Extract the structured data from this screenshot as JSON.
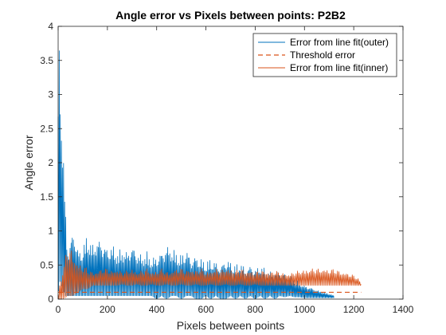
{
  "chart_data": {
    "type": "line",
    "title": "Angle error vs Pixels between points: P2B2",
    "xlabel": "Pixels between points",
    "ylabel": "Angle error",
    "xlim": [
      0,
      1400
    ],
    "ylim": [
      0,
      4
    ],
    "xticks": [
      0,
      200,
      400,
      600,
      800,
      1000,
      1200,
      1400
    ],
    "yticks": [
      0,
      0.5,
      1,
      1.5,
      2,
      2.5,
      3,
      3.5,
      4
    ],
    "xtick_labels": [
      "0",
      "200",
      "400",
      "600",
      "800",
      "1000",
      "1200",
      "1400"
    ],
    "ytick_labels": [
      "0",
      "0.5",
      "1",
      "1.5",
      "2",
      "2.5",
      "3",
      "3.5",
      "4"
    ],
    "grid": false,
    "legend_position": "top-right",
    "series": [
      {
        "name": "Error from line fit(outer)",
        "color": "#0072BD",
        "style": "solid",
        "x": [
          0,
          8,
          15,
          20,
          25,
          28,
          32,
          36,
          40,
          45,
          50,
          60,
          70,
          80,
          90,
          100,
          120,
          140,
          160,
          180,
          200,
          220,
          240,
          260,
          280,
          300,
          320,
          340,
          360,
          380,
          400,
          420,
          440,
          460,
          480,
          500,
          520,
          540,
          560,
          580,
          600,
          620,
          640,
          660,
          680,
          700,
          720,
          740,
          760,
          780,
          800,
          820,
          840,
          860,
          880,
          900,
          920,
          940,
          960,
          980,
          1000,
          1020,
          1040,
          1060,
          1080,
          1100,
          1120
        ],
        "peak": [
          3.8,
          3.75,
          2.9,
          2.3,
          1.9,
          1.6,
          1.1,
          0.85,
          0.8,
          0.75,
          0.9,
          1.0,
          0.95,
          0.75,
          0.7,
          0.8,
          0.95,
          0.8,
          0.9,
          0.85,
          0.75,
          0.8,
          0.7,
          0.75,
          0.7,
          0.8,
          0.7,
          0.65,
          0.7,
          0.6,
          0.65,
          0.7,
          0.8,
          0.75,
          0.7,
          0.65,
          0.75,
          0.6,
          0.65,
          0.6,
          0.55,
          0.6,
          0.55,
          0.5,
          0.6,
          0.55,
          0.5,
          0.55,
          0.45,
          0.5,
          0.45,
          0.5,
          0.45,
          0.4,
          0.42,
          0.4,
          0.38,
          0.35,
          0.3,
          0.25,
          0.2,
          0.18,
          0.15,
          0.12,
          0.1,
          0.08,
          0.05
        ],
        "trough": [
          0.05,
          0.3,
          0.2,
          0.1,
          0.1,
          0.05,
          0.05,
          0.05,
          0.05,
          0.05,
          0.05,
          0.05,
          0.05,
          0.05,
          0.05,
          0.05,
          0.05,
          0.05,
          0.05,
          0.05,
          0.05,
          0.05,
          0.05,
          0.05,
          0.05,
          0.05,
          0.05,
          0.05,
          0.05,
          0.05,
          0.0,
          0.05,
          0.0,
          0.05,
          0.05,
          0.0,
          0.05,
          0.05,
          0.0,
          0.0,
          0.05,
          0.0,
          0.05,
          0.0,
          0.0,
          0.05,
          0.0,
          0.05,
          0.0,
          0.05,
          0.0,
          0.05,
          0.0,
          0.05,
          0.0,
          0.05,
          0.03,
          0.05,
          0.03,
          0.03,
          0.02,
          0.02,
          0.02,
          0.02,
          0.02,
          0.02,
          0.02
        ]
      },
      {
        "name": "Threshold error",
        "color": "#D95319",
        "style": "dashed",
        "x": [
          0,
          1230
        ],
        "values": [
          0.1,
          0.1
        ]
      },
      {
        "name": "Error from line fit(inner)",
        "color": "#D95319",
        "style": "solid",
        "x": [
          0,
          20,
          40,
          60,
          80,
          100,
          120,
          140,
          160,
          180,
          200,
          220,
          240,
          260,
          280,
          300,
          320,
          340,
          360,
          380,
          400,
          420,
          440,
          460,
          480,
          500,
          520,
          540,
          560,
          580,
          600,
          620,
          640,
          660,
          680,
          700,
          720,
          740,
          760,
          780,
          800,
          820,
          840,
          860,
          880,
          900,
          920,
          940,
          960,
          980,
          1000,
          1020,
          1040,
          1060,
          1080,
          1100,
          1120,
          1140,
          1160,
          1180,
          1200,
          1220,
          1230
        ],
        "peak": [
          0.1,
          0.5,
          0.8,
          0.7,
          0.55,
          0.5,
          0.45,
          0.4,
          0.42,
          0.45,
          0.45,
          0.42,
          0.45,
          0.4,
          0.42,
          0.45,
          0.4,
          0.42,
          0.45,
          0.4,
          0.42,
          0.45,
          0.4,
          0.42,
          0.45,
          0.45,
          0.42,
          0.45,
          0.42,
          0.45,
          0.4,
          0.42,
          0.45,
          0.42,
          0.45,
          0.45,
          0.42,
          0.45,
          0.42,
          0.42,
          0.4,
          0.42,
          0.42,
          0.4,
          0.42,
          0.4,
          0.38,
          0.38,
          0.4,
          0.42,
          0.44,
          0.45,
          0.45,
          0.45,
          0.45,
          0.45,
          0.44,
          0.42,
          0.4,
          0.38,
          0.35,
          0.3,
          0.22
        ],
        "trough": [
          0.0,
          0.0,
          0.05,
          0.05,
          0.1,
          0.15,
          0.15,
          0.2,
          0.2,
          0.2,
          0.2,
          0.2,
          0.2,
          0.22,
          0.2,
          0.2,
          0.22,
          0.2,
          0.2,
          0.22,
          0.2,
          0.2,
          0.22,
          0.2,
          0.2,
          0.22,
          0.2,
          0.2,
          0.22,
          0.2,
          0.2,
          0.22,
          0.2,
          0.2,
          0.22,
          0.2,
          0.2,
          0.22,
          0.2,
          0.2,
          0.22,
          0.2,
          0.2,
          0.2,
          0.2,
          0.2,
          0.2,
          0.2,
          0.2,
          0.2,
          0.2,
          0.2,
          0.2,
          0.2,
          0.2,
          0.2,
          0.2,
          0.2,
          0.2,
          0.2,
          0.2,
          0.2,
          0.2
        ]
      }
    ]
  }
}
